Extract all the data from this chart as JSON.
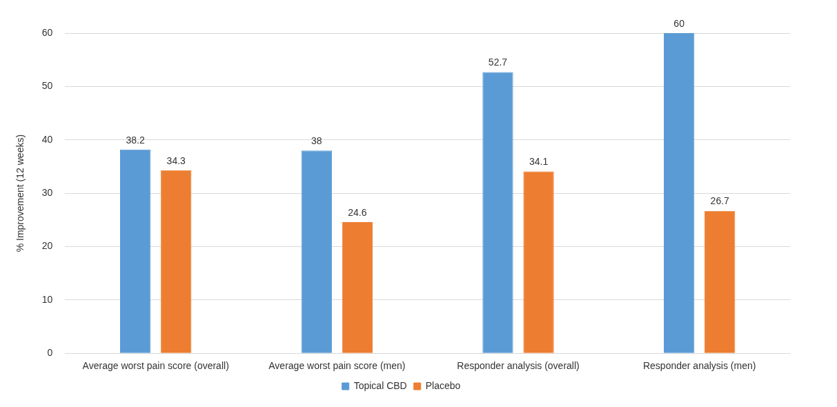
{
  "chart_data": {
    "type": "bar",
    "ylabel": "% Improvement (12 weeks)",
    "categories": [
      "Average worst pain score (overall)",
      "Average worst pain score (men)",
      "Responder analysis (overall)",
      "Responder analysis (men)"
    ],
    "series": [
      {
        "name": "Topical CBD",
        "color": "#5b9bd5",
        "values": [
          38.2,
          38,
          52.7,
          60
        ]
      },
      {
        "name": "Placebo",
        "color": "#ed7d31",
        "values": [
          34.3,
          24.6,
          34.1,
          26.7
        ]
      }
    ],
    "ylim": [
      0,
      60
    ],
    "yticks": [
      0,
      10,
      20,
      30,
      40,
      50,
      60
    ],
    "grid": "y",
    "legend": "bottom",
    "data_labels": true
  }
}
